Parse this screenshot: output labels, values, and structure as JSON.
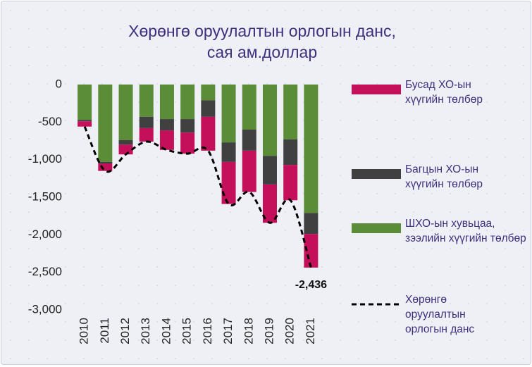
{
  "chart_data": {
    "type": "bar",
    "stacked": true,
    "title": [
      "Хөрөнгө оруулалтын орлогын данс,",
      "сая ам.доллар"
    ],
    "categories": [
      "2010",
      "2011",
      "2012",
      "2013",
      "2014",
      "2015",
      "2016",
      "2017",
      "2018",
      "2019",
      "2020",
      "2021"
    ],
    "series": [
      {
        "name": "Бусад ХО-ын хүүгийн төлбөр",
        "type": "bar",
        "color": "#c4105a",
        "values": [
          -70,
          -100,
          -130,
          -180,
          -260,
          -280,
          -450,
          -560,
          -550,
          -510,
          -470,
          -446
        ]
      },
      {
        "name": "Багцын ХО-ын хүүгийн төлбөр",
        "type": "bar",
        "color": "#404040",
        "values": [
          -20,
          -20,
          -60,
          -150,
          -150,
          -180,
          -220,
          -260,
          -280,
          -380,
          -340,
          -280
        ]
      },
      {
        "name": "ШХО-ын хувьцаа, зээлийн хүүгийн төлбөр",
        "type": "bar",
        "color": "#5b8c37",
        "values": [
          -470,
          -1030,
          -740,
          -430,
          -460,
          -460,
          -210,
          -770,
          -600,
          -950,
          -730,
          -1710
        ]
      },
      {
        "name": "Хөрөнгө оруулалтын орлогын данс",
        "type": "line",
        "color": "#000000",
        "dashed": true,
        "values": [
          -560,
          -1150,
          -930,
          -760,
          -870,
          -920,
          -880,
          -1590,
          -1430,
          -1840,
          -1540,
          -2436
        ],
        "value_labels": [
          null,
          null,
          null,
          null,
          null,
          null,
          null,
          null,
          null,
          null,
          null,
          "-2,436"
        ]
      }
    ],
    "ylim": [
      -3000,
      0
    ],
    "yticks": [
      0,
      -500,
      {
        "value": -1000,
        "label": "-1,000"
      },
      {
        "value": -1500,
        "label": "-1,500"
      },
      {
        "value": -2000,
        "label": "-2,000"
      },
      {
        "value": -2500,
        "label": "-2,500"
      },
      {
        "value": -3000,
        "label": "-3,000"
      }
    ],
    "grid": false,
    "legend": "right"
  }
}
